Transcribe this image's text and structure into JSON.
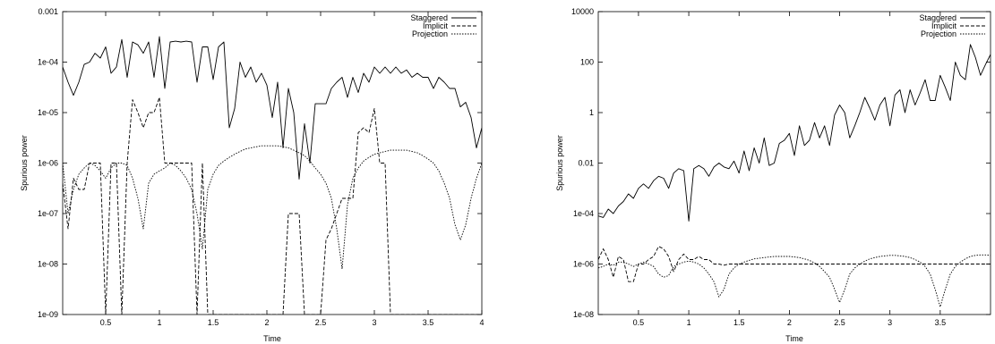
{
  "chart_data": [
    {
      "type": "line",
      "title": "",
      "xlabel": "Time",
      "ylabel": "Spurious power",
      "xscale": "linear",
      "yscale": "log",
      "xlim": [
        0.1,
        4.0
      ],
      "ylim": [
        1e-09,
        0.001
      ],
      "xticks": [
        0.5,
        1,
        1.5,
        2,
        2.5,
        3,
        3.5,
        4
      ],
      "xtick_labels": [
        "0.5",
        "1",
        "1.5",
        "2",
        "2.5",
        "3",
        "3.5",
        "4"
      ],
      "yticks": [
        1e-09,
        1e-08,
        1e-07,
        1e-06,
        1e-05,
        0.0001,
        0.001
      ],
      "ytick_labels": [
        "1e-09",
        "1e-08",
        "1e-07",
        "1e-06",
        "1e-05",
        "1e-04",
        "0.001"
      ],
      "grid": false,
      "legend_position": "top-right",
      "series": [
        {
          "name": "Staggered",
          "style": "solid",
          "x": [
            0.1,
            0.15,
            0.2,
            0.25,
            0.3,
            0.35,
            0.4,
            0.45,
            0.5,
            0.55,
            0.6,
            0.65,
            0.7,
            0.75,
            0.8,
            0.85,
            0.9,
            0.95,
            1.0,
            1.05,
            1.1,
            1.15,
            1.2,
            1.25,
            1.3,
            1.35,
            1.4,
            1.45,
            1.5,
            1.55,
            1.6,
            1.65,
            1.7,
            1.75,
            1.8,
            1.85,
            1.9,
            1.95,
            2.0,
            2.05,
            2.1,
            2.15,
            2.2,
            2.25,
            2.3,
            2.35,
            2.4,
            2.45,
            2.5,
            2.55,
            2.6,
            2.65,
            2.7,
            2.75,
            2.8,
            2.85,
            2.9,
            2.95,
            3.0,
            3.05,
            3.1,
            3.15,
            3.2,
            3.25,
            3.3,
            3.35,
            3.4,
            3.45,
            3.5,
            3.55,
            3.6,
            3.65,
            3.7,
            3.75,
            3.8,
            3.85,
            3.9,
            3.95,
            4.0
          ],
          "y": [
            8e-05,
            4e-05,
            2.2e-05,
            4e-05,
            9e-05,
            0.0001,
            0.00015,
            0.00012,
            0.0002,
            6e-05,
            8e-05,
            0.00028,
            5e-05,
            0.00025,
            0.00022,
            0.00015,
            0.00025,
            5e-05,
            0.00032,
            3e-05,
            0.00025,
            0.00026,
            0.00025,
            0.00026,
            0.00025,
            4e-05,
            0.0002,
            0.0002,
            4.5e-05,
            0.0002,
            0.00025,
            5e-06,
            1.2e-05,
            0.0001,
            5e-05,
            8e-05,
            4e-05,
            6e-05,
            3.5e-05,
            8e-06,
            4e-05,
            2e-06,
            3e-05,
            1e-05,
            4.8e-07,
            6e-06,
            1e-06,
            1.5e-05,
            1.5e-05,
            1.5e-05,
            3e-05,
            4e-05,
            5e-05,
            2e-05,
            5e-05,
            2.5e-05,
            6e-05,
            4e-05,
            8e-05,
            6e-05,
            8e-05,
            6e-05,
            8e-05,
            6e-05,
            7e-05,
            5e-05,
            6e-05,
            5e-05,
            5e-05,
            3e-05,
            5e-05,
            4e-05,
            3e-05,
            3e-05,
            1.3e-05,
            1.6e-05,
            8e-06,
            2e-06,
            5e-06
          ]
        },
        {
          "name": "Implicit",
          "style": "dashed",
          "x": [
            0.1,
            0.15,
            0.2,
            0.25,
            0.3,
            0.35,
            0.4,
            0.45,
            0.5,
            0.55,
            0.6,
            0.65,
            0.7,
            0.75,
            0.8,
            0.85,
            0.9,
            0.95,
            1.0,
            1.05,
            1.1,
            1.15,
            1.2,
            1.25,
            1.3,
            1.35,
            1.4,
            1.45,
            1.5,
            1.55,
            1.6,
            1.65,
            1.7,
            1.75,
            1.8,
            1.85,
            1.9,
            1.95,
            2.0,
            2.05,
            2.1,
            2.15,
            2.2,
            2.25,
            2.3,
            2.35,
            2.4,
            2.45,
            2.5,
            2.55,
            2.6,
            2.65,
            2.7,
            2.75,
            2.8,
            2.85,
            2.9,
            2.95,
            3.0,
            3.05,
            3.1,
            3.15,
            3.2,
            3.25,
            3.3,
            3.35,
            3.4,
            3.45,
            3.5,
            3.55,
            3.6,
            3.65,
            3.7,
            3.75,
            3.8,
            3.85,
            3.9,
            3.95,
            4.0
          ],
          "y": [
            4e-07,
            5e-08,
            5e-07,
            3e-07,
            3e-07,
            1e-06,
            1e-06,
            1e-06,
            1e-09,
            1e-06,
            1e-06,
            1e-09,
            1e-06,
            1.8e-05,
            1e-05,
            5e-06,
            1e-05,
            1e-05,
            2e-05,
            1e-06,
            1e-06,
            1e-06,
            1e-06,
            1e-06,
            1e-06,
            1e-09,
            1e-06,
            1e-09,
            1e-09,
            1e-09,
            1e-09,
            1e-09,
            1e-09,
            1e-09,
            1e-09,
            1e-09,
            1e-09,
            1e-09,
            1e-09,
            1e-09,
            1e-09,
            1e-09,
            1e-07,
            1e-07,
            1e-07,
            1e-09,
            1e-09,
            1e-09,
            1e-09,
            3e-08,
            5e-08,
            1e-07,
            2e-07,
            2e-07,
            2e-07,
            4e-06,
            5e-06,
            4e-06,
            1.2e-05,
            1e-06,
            1e-06,
            1e-09,
            1e-09,
            1e-09,
            1e-09,
            1e-09,
            1e-09,
            1e-09,
            1e-09,
            1e-09,
            1e-09,
            1e-09,
            1e-09,
            1e-09,
            1e-09,
            1e-09,
            1e-09,
            1e-09,
            1e-09
          ]
        },
        {
          "name": "Projection",
          "style": "dotted",
          "x": [
            0.1,
            0.15,
            0.2,
            0.25,
            0.3,
            0.35,
            0.4,
            0.45,
            0.5,
            0.55,
            0.6,
            0.65,
            0.7,
            0.75,
            0.8,
            0.85,
            0.9,
            0.95,
            1.0,
            1.05,
            1.1,
            1.15,
            1.2,
            1.25,
            1.3,
            1.35,
            1.4,
            1.45,
            1.5,
            1.55,
            1.6,
            1.65,
            1.7,
            1.75,
            1.8,
            1.85,
            1.9,
            1.95,
            2.0,
            2.05,
            2.1,
            2.15,
            2.2,
            2.25,
            2.3,
            2.35,
            2.4,
            2.45,
            2.5,
            2.55,
            2.6,
            2.65,
            2.7,
            2.75,
            2.8,
            2.85,
            2.9,
            2.95,
            3.0,
            3.05,
            3.1,
            3.15,
            3.2,
            3.25,
            3.3,
            3.35,
            3.4,
            3.45,
            3.5,
            3.55,
            3.6,
            3.65,
            3.7,
            3.75,
            3.8,
            3.85,
            3.9,
            3.95,
            4.0
          ],
          "y": [
            1e-06,
            1e-07,
            3e-07,
            6e-07,
            8e-07,
            1e-06,
            9e-07,
            7e-07,
            5e-07,
            8e-07,
            1e-06,
            1e-06,
            9e-07,
            5e-07,
            2e-07,
            5e-08,
            4e-07,
            6e-07,
            7e-07,
            8e-07,
            1e-06,
            9e-07,
            7e-07,
            5e-07,
            3e-07,
            1e-07,
            2e-08,
            3e-07,
            6e-07,
            9e-07,
            1.1e-06,
            1.3e-06,
            1.5e-06,
            1.7e-06,
            1.9e-06,
            2e-06,
            2.1e-06,
            2.2e-06,
            2.2e-06,
            2.2e-06,
            2.2e-06,
            2.1e-06,
            2e-06,
            1.8e-06,
            1.6e-06,
            1.4e-06,
            1.1e-06,
            8e-07,
            6e-07,
            4e-07,
            2e-07,
            5e-08,
            8e-09,
            1.5e-07,
            5e-07,
            8e-07,
            1.1e-06,
            1.3e-06,
            1.5e-06,
            1.6e-06,
            1.7e-06,
            1.8e-06,
            1.8e-06,
            1.8e-06,
            1.8e-06,
            1.7e-06,
            1.6e-06,
            1.4e-06,
            1.2e-06,
            1e-06,
            7e-07,
            4e-07,
            2e-07,
            6e-08,
            3e-08,
            6e-08,
            2e-07,
            5e-07,
            1e-06
          ]
        }
      ]
    },
    {
      "type": "line",
      "title": "",
      "xlabel": "Time",
      "ylabel": "Spurious power",
      "xscale": "linear",
      "yscale": "log",
      "xlim": [
        0.1,
        4.0
      ],
      "ylim": [
        1e-08,
        10000
      ],
      "xticks": [
        0.5,
        1,
        1.5,
        2,
        2.5,
        3,
        3.5
      ],
      "xtick_labels": [
        "0.5",
        "1",
        "1.5",
        "2",
        "2.5",
        "3",
        "3.5"
      ],
      "yticks": [
        1e-08,
        1e-06,
        0.0001,
        0.01,
        1,
        100,
        10000
      ],
      "ytick_labels": [
        "1e-08",
        "1e-06",
        "1e-04",
        "0.01",
        "1",
        "100",
        "10000"
      ],
      "grid": false,
      "legend_position": "top-right",
      "series": [
        {
          "name": "Staggered",
          "style": "solid",
          "x": [
            0.1,
            0.15,
            0.2,
            0.25,
            0.3,
            0.35,
            0.4,
            0.45,
            0.5,
            0.55,
            0.6,
            0.65,
            0.7,
            0.75,
            0.8,
            0.85,
            0.9,
            0.95,
            1.0,
            1.05,
            1.1,
            1.15,
            1.2,
            1.25,
            1.3,
            1.35,
            1.4,
            1.45,
            1.5,
            1.55,
            1.6,
            1.65,
            1.7,
            1.75,
            1.8,
            1.85,
            1.9,
            1.95,
            2.0,
            2.05,
            2.1,
            2.15,
            2.2,
            2.25,
            2.3,
            2.35,
            2.4,
            2.45,
            2.5,
            2.55,
            2.6,
            2.65,
            2.7,
            2.75,
            2.8,
            2.85,
            2.9,
            2.95,
            3.0,
            3.05,
            3.1,
            3.15,
            3.2,
            3.25,
            3.3,
            3.35,
            3.4,
            3.45,
            3.5,
            3.55,
            3.6,
            3.65,
            3.7,
            3.75,
            3.8,
            3.85,
            3.9,
            3.95,
            4.0
          ],
          "y": [
            8e-05,
            7e-05,
            0.00015,
            0.0001,
            0.0002,
            0.0003,
            0.0006,
            0.0004,
            0.001,
            0.0015,
            0.001,
            0.002,
            0.003,
            0.0025,
            0.001,
            0.004,
            0.006,
            0.005,
            5e-05,
            0.006,
            0.008,
            0.006,
            0.003,
            0.007,
            0.01,
            0.007,
            0.006,
            0.012,
            0.004,
            0.03,
            0.005,
            0.04,
            0.01,
            0.1,
            0.008,
            0.01,
            0.06,
            0.08,
            0.15,
            0.02,
            0.3,
            0.05,
            0.08,
            0.4,
            0.1,
            0.3,
            0.05,
            0.8,
            2,
            1,
            0.1,
            0.3,
            1,
            4,
            1.5,
            0.5,
            2,
            4,
            0.3,
            5,
            8,
            1,
            8,
            2,
            6,
            20,
            3,
            3,
            30,
            10,
            3,
            100,
            30,
            20,
            500,
            150,
            30,
            80,
            200
          ]
        },
        {
          "name": "Implicit",
          "style": "dashed",
          "x": [
            0.1,
            0.15,
            0.2,
            0.25,
            0.3,
            0.35,
            0.4,
            0.45,
            0.5,
            0.55,
            0.6,
            0.65,
            0.7,
            0.75,
            0.8,
            0.85,
            0.9,
            0.95,
            1.0,
            1.05,
            1.1,
            1.15,
            1.2,
            1.25,
            1.3,
            1.35,
            1.4,
            1.45,
            1.5,
            1.55,
            1.6,
            1.65,
            1.7,
            1.75,
            1.8,
            1.85,
            1.9,
            1.95,
            2.0,
            2.05,
            2.1,
            2.15,
            2.2,
            2.25,
            2.3,
            2.35,
            2.4,
            2.45,
            2.5,
            2.55,
            2.6,
            2.65,
            2.7,
            2.75,
            2.8,
            2.85,
            2.9,
            2.95,
            3.0,
            3.05,
            3.1,
            3.15,
            3.2,
            3.25,
            3.3,
            3.35,
            3.4,
            3.45,
            3.5,
            3.55,
            3.6,
            3.65,
            3.7,
            3.75,
            3.8,
            3.85,
            3.9,
            3.95,
            4.0
          ],
          "y": [
            1.5e-06,
            4e-06,
            1.5e-06,
            3e-07,
            2e-06,
            1.5e-06,
            2e-07,
            2e-07,
            1e-06,
            1e-06,
            1.5e-06,
            2e-06,
            5e-06,
            4e-06,
            2e-06,
            5e-07,
            1.5e-06,
            2.5e-06,
            1.5e-06,
            1.5e-06,
            2e-06,
            1.5e-06,
            1.5e-06,
            1e-06,
            1e-06,
            9e-07,
            1e-06,
            1e-06,
            1e-06,
            1e-06,
            1e-06,
            1e-06,
            1e-06,
            1e-06,
            1e-06,
            1e-06,
            1e-06,
            1e-06,
            1e-06,
            1e-06,
            1e-06,
            1e-06,
            1e-06,
            1e-06,
            1e-06,
            1e-06,
            1e-06,
            1e-06,
            1e-06,
            1e-06,
            1e-06,
            1e-06,
            1e-06,
            1e-06,
            1e-06,
            1e-06,
            1e-06,
            1e-06,
            1e-06,
            1e-06,
            1e-06,
            1e-06,
            1e-06,
            1e-06,
            1e-06,
            1e-06,
            1e-06,
            1e-06,
            1e-06,
            1e-06,
            1e-06,
            1e-06,
            1e-06,
            1e-06,
            1e-06,
            1e-06,
            1e-06,
            1e-06,
            1e-06
          ]
        },
        {
          "name": "Projection",
          "style": "dotted",
          "x": [
            0.1,
            0.15,
            0.2,
            0.25,
            0.3,
            0.35,
            0.4,
            0.45,
            0.5,
            0.55,
            0.6,
            0.65,
            0.7,
            0.75,
            0.8,
            0.85,
            0.9,
            0.95,
            1.0,
            1.05,
            1.1,
            1.15,
            1.2,
            1.25,
            1.3,
            1.35,
            1.4,
            1.45,
            1.5,
            1.55,
            1.6,
            1.65,
            1.7,
            1.75,
            1.8,
            1.85,
            1.9,
            1.95,
            2.0,
            2.05,
            2.1,
            2.15,
            2.2,
            2.25,
            2.3,
            2.35,
            2.4,
            2.45,
            2.5,
            2.55,
            2.6,
            2.65,
            2.7,
            2.75,
            2.8,
            2.85,
            2.9,
            2.95,
            3.0,
            3.05,
            3.1,
            3.15,
            3.2,
            3.25,
            3.3,
            3.35,
            3.4,
            3.45,
            3.5,
            3.55,
            3.6,
            3.65,
            3.7,
            3.75,
            3.8,
            3.85,
            3.9,
            3.95,
            4.0
          ],
          "y": [
            7e-07,
            8e-07,
            1e-06,
            9e-07,
            1.2e-06,
            1.2e-06,
            1e-06,
            8e-07,
            1e-06,
            1.2e-06,
            1e-06,
            8e-07,
            4e-07,
            3e-07,
            3.5e-07,
            8e-07,
            1e-06,
            1.2e-06,
            1.3e-06,
            1.2e-06,
            1e-06,
            7e-07,
            4e-07,
            2e-07,
            5e-08,
            1e-07,
            4e-07,
            7e-07,
            1e-06,
            1.2e-06,
            1.4e-06,
            1.6e-06,
            1.7e-06,
            1.8e-06,
            1.9e-06,
            2e-06,
            2e-06,
            2e-06,
            2e-06,
            1.9e-06,
            1.8e-06,
            1.6e-06,
            1.4e-06,
            1.1e-06,
            8e-07,
            5e-07,
            3e-07,
            1e-07,
            3e-08,
            1e-07,
            4e-07,
            7e-07,
            1e-06,
            1.3e-06,
            1.6e-06,
            1.8e-06,
            2e-06,
            2.1e-06,
            2.2e-06,
            2.2e-06,
            2.1e-06,
            2e-06,
            1.8e-06,
            1.5e-06,
            1.2e-06,
            8e-07,
            4e-07,
            1e-07,
            2e-08,
            1e-07,
            4e-07,
            8e-07,
            1.2e-06,
            1.6e-06,
            2e-06,
            2.2e-06,
            2.3e-06,
            2.3e-06,
            2.2e-06
          ]
        }
      ]
    }
  ]
}
